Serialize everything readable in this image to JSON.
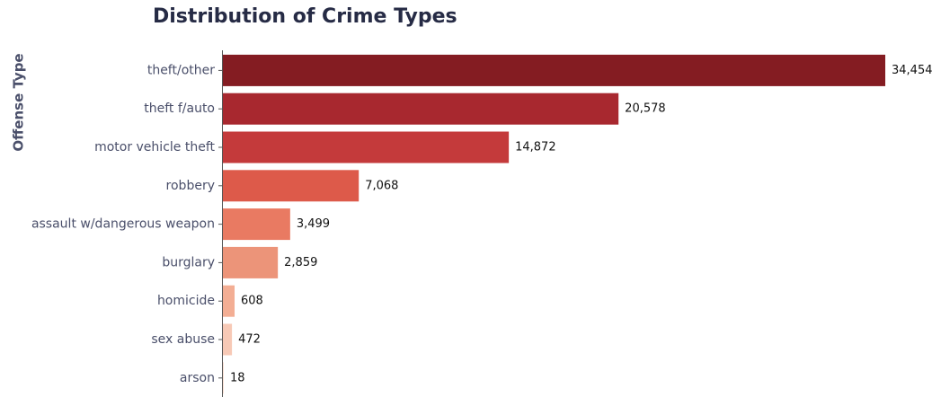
{
  "chart_data": {
    "type": "bar",
    "orientation": "horizontal",
    "title": "Distribution of Crime Types",
    "xlabel": "",
    "ylabel": "Offense Type",
    "categories": [
      "theft/other",
      "theft f/auto",
      "motor vehicle theft",
      "robbery",
      "assault w/dangerous weapon",
      "burglary",
      "homicide",
      "sex abuse",
      "arson"
    ],
    "values": [
      34454,
      20578,
      14872,
      7068,
      3499,
      2859,
      608,
      472,
      18
    ],
    "value_labels": [
      "34,454",
      "20,578",
      "14,872",
      "7,068",
      "3,499",
      "2,859",
      "608",
      "472",
      "18"
    ],
    "colors": [
      "#841c22",
      "#a8282f",
      "#c43a3b",
      "#dd5a4a",
      "#e97a62",
      "#ec9479",
      "#f3ae94",
      "#f7c9b6",
      "#fbe2d6"
    ],
    "xlim": [
      0,
      34454
    ],
    "grid": false,
    "legend": "none"
  }
}
